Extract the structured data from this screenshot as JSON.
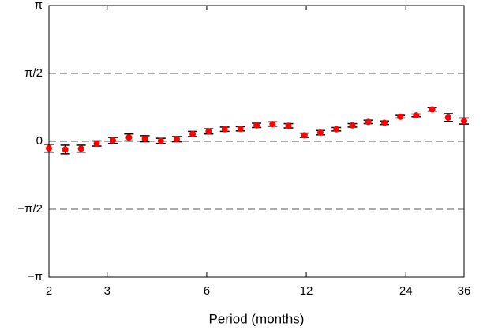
{
  "chart_data": {
    "type": "scatter",
    "xlabel": "Period (months)",
    "xscale": "log",
    "xlim": [
      2,
      36
    ],
    "ylim": [
      -3.14159,
      3.14159
    ],
    "xticks": [
      2,
      3,
      6,
      12,
      24,
      36
    ],
    "yticks": [
      {
        "value": -3.14159,
        "label": "−π"
      },
      {
        "value": -1.5708,
        "label": "−π/2"
      },
      0,
      {
        "value": 1.5708,
        "label": "π/2"
      },
      {
        "value": 3.14159,
        "label": "π"
      }
    ],
    "grid": true,
    "series": [
      {
        "color": "#ff0000",
        "x": [
          2.0,
          2.24,
          2.5,
          2.79,
          3.12,
          3.49,
          3.9,
          4.36,
          4.87,
          5.44,
          6.08,
          6.8,
          7.59,
          8.49,
          9.49,
          10.6,
          11.85,
          13.24,
          14.8,
          16.54,
          18.48,
          20.66,
          23.09,
          25.8,
          28.83,
          32.23,
          36.0
        ],
        "values": [
          -0.16,
          -0.19,
          -0.17,
          -0.05,
          0.02,
          0.09,
          0.06,
          0.01,
          0.05,
          0.17,
          0.23,
          0.28,
          0.29,
          0.37,
          0.4,
          0.36,
          0.14,
          0.2,
          0.28,
          0.37,
          0.45,
          0.43,
          0.57,
          0.6,
          0.74,
          0.55,
          0.47
        ],
        "errors": [
          0.09,
          0.1,
          0.08,
          0.06,
          0.07,
          0.08,
          0.07,
          0.06,
          0.06,
          0.06,
          0.06,
          0.05,
          0.05,
          0.05,
          0.05,
          0.05,
          0.05,
          0.05,
          0.04,
          0.04,
          0.04,
          0.04,
          0.03,
          0.03,
          0.04,
          0.09,
          0.07
        ]
      }
    ]
  }
}
